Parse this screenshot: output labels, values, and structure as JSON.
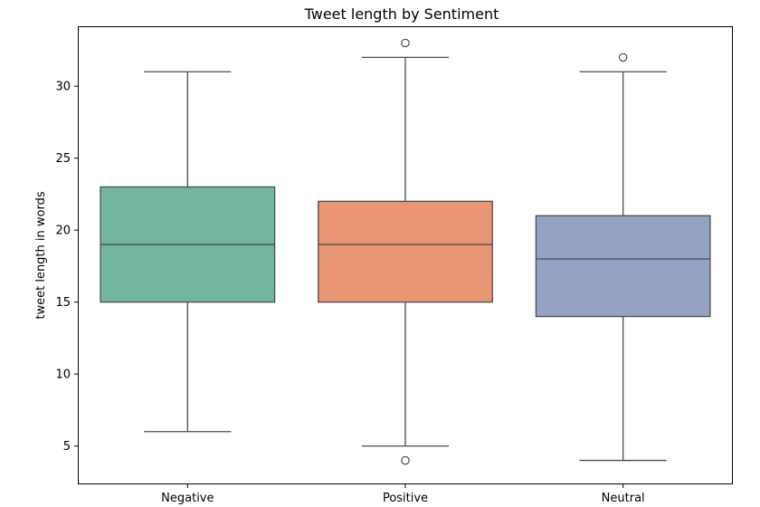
{
  "chart_data": {
    "type": "box",
    "title": "Tweet length by Sentiment",
    "xlabel": "",
    "ylabel": "tweet length in words",
    "ylim": [
      2.4,
      34.1
    ],
    "yticks": [
      5,
      10,
      15,
      20,
      25,
      30
    ],
    "grid": false,
    "categories": [
      "Negative",
      "Positive",
      "Neutral"
    ],
    "boxes": [
      {
        "category": "Negative",
        "whisker_low": 6,
        "q1": 15,
        "median": 19,
        "q3": 23,
        "whisker_high": 31,
        "outliers": [],
        "color": "#72b5a1"
      },
      {
        "category": "Positive",
        "whisker_low": 5,
        "q1": 15,
        "median": 19,
        "q3": 22,
        "whisker_high": 32,
        "outliers": [
          4,
          33
        ],
        "color": "#e89674"
      },
      {
        "category": "Neutral",
        "whisker_low": 4,
        "q1": 14,
        "median": 18,
        "q3": 21,
        "whisker_high": 31,
        "outliers": [
          32
        ],
        "color": "#94a3c4"
      }
    ]
  }
}
